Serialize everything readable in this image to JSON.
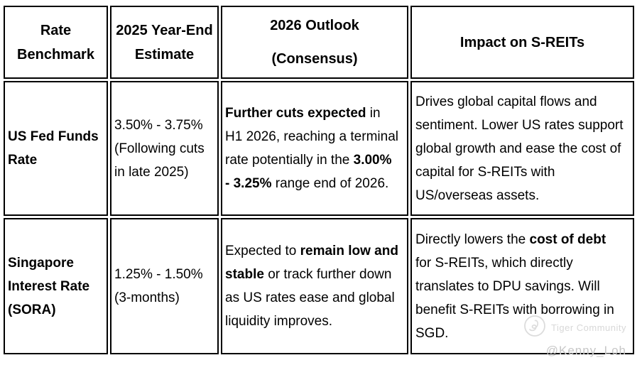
{
  "table": {
    "border_color": "#000000",
    "background": "#ffffff",
    "text_color": "#000000",
    "headers": [
      {
        "label": "Rate Benchmark"
      },
      {
        "label": "2025 Year-End Estimate"
      },
      {
        "label": "2026 Outlook",
        "sublabel": "(Consensus)"
      },
      {
        "label": "Impact on S-REITs"
      }
    ],
    "rows": [
      {
        "benchmark": "US Fed Funds Rate",
        "estimate": "3.50% - 3.75% (Following cuts in late 2025)",
        "outlook": [
          {
            "t": "Further cuts expected",
            "b": true
          },
          {
            "t": " in H1 2026, reaching a terminal rate potentially in the ",
            "b": false
          },
          {
            "t": "3.00% - 3.25%",
            "b": true
          },
          {
            "t": " range end of 2026.",
            "b": false
          }
        ],
        "impact": [
          {
            "t": "Drives global capital flows and sentiment. Lower US rates support global growth and ease the cost of capital for S-REITs with US/overseas assets.",
            "b": false
          }
        ]
      },
      {
        "benchmark": "Singapore Interest Rate (SORA)",
        "estimate": "1.25% - 1.50% (3-months)",
        "outlook": [
          {
            "t": "Expected to ",
            "b": false
          },
          {
            "t": "remain low and stable",
            "b": true
          },
          {
            "t": " or track further down as US rates ease and global liquidity improves.",
            "b": false
          }
        ],
        "impact": [
          {
            "t": "Directly lowers the ",
            "b": false
          },
          {
            "t": "cost of debt",
            "b": true
          },
          {
            "t": " for S-REITs, which directly translates to DPU savings. Will benefit S-REITs with borrowing in SGD.",
            "b": false
          }
        ]
      }
    ]
  },
  "watermark": {
    "brand": "Tiger Community",
    "handle": "@Kenny_Loh",
    "icon": "tiger-community-icon",
    "color": "#d2d2d2"
  }
}
